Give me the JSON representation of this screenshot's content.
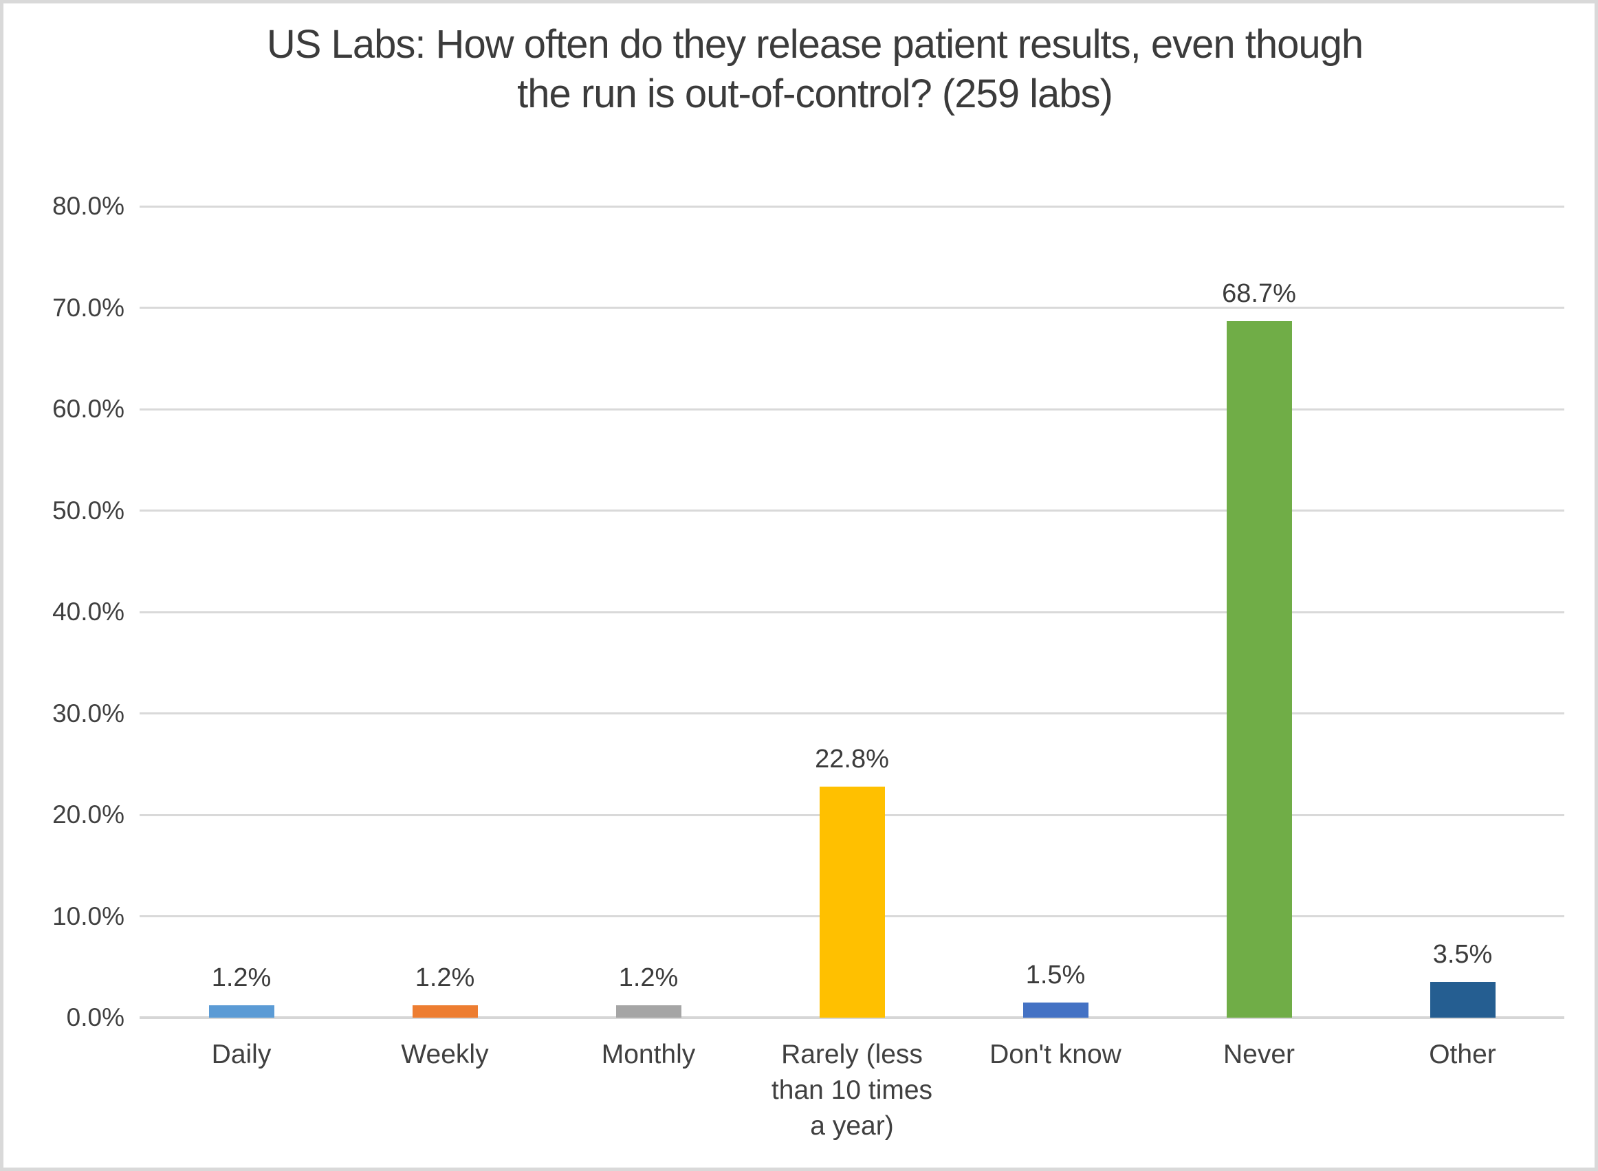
{
  "chart_data": {
    "type": "bar",
    "title": "US Labs: How often do they release patient results, even though the run is out-of-control? (259 labs)",
    "categories": [
      "Daily",
      "Weekly",
      "Monthly",
      "Rarely (less than 10 times a year)",
      "Don't know",
      "Never",
      "Other"
    ],
    "values": [
      1.2,
      1.2,
      1.2,
      22.8,
      1.5,
      68.7,
      3.5
    ],
    "data_labels": [
      "1.2%",
      "1.2%",
      "1.2%",
      "22.8%",
      "1.5%",
      "68.7%",
      "3.5%"
    ],
    "bar_colors": [
      "#5B9BD5",
      "#ED7D31",
      "#A5A5A5",
      "#FFC000",
      "#4472C4",
      "#70AD47",
      "#255E91"
    ],
    "xlabel": "",
    "ylabel": "",
    "ylim": [
      0,
      80
    ],
    "y_tick_step": 10,
    "y_tick_labels": [
      "0.0%",
      "10.0%",
      "20.0%",
      "30.0%",
      "40.0%",
      "50.0%",
      "60.0%",
      "70.0%",
      "80.0%"
    ],
    "grid": true,
    "legend": false,
    "colors": {
      "gridline": "#D9D9D9",
      "axis_text": "#404040",
      "title_text": "#3B3B3B",
      "data_label_text": "#3B3B3B",
      "background": "#FFFFFF",
      "frame_border": "#D9D9D9"
    }
  }
}
